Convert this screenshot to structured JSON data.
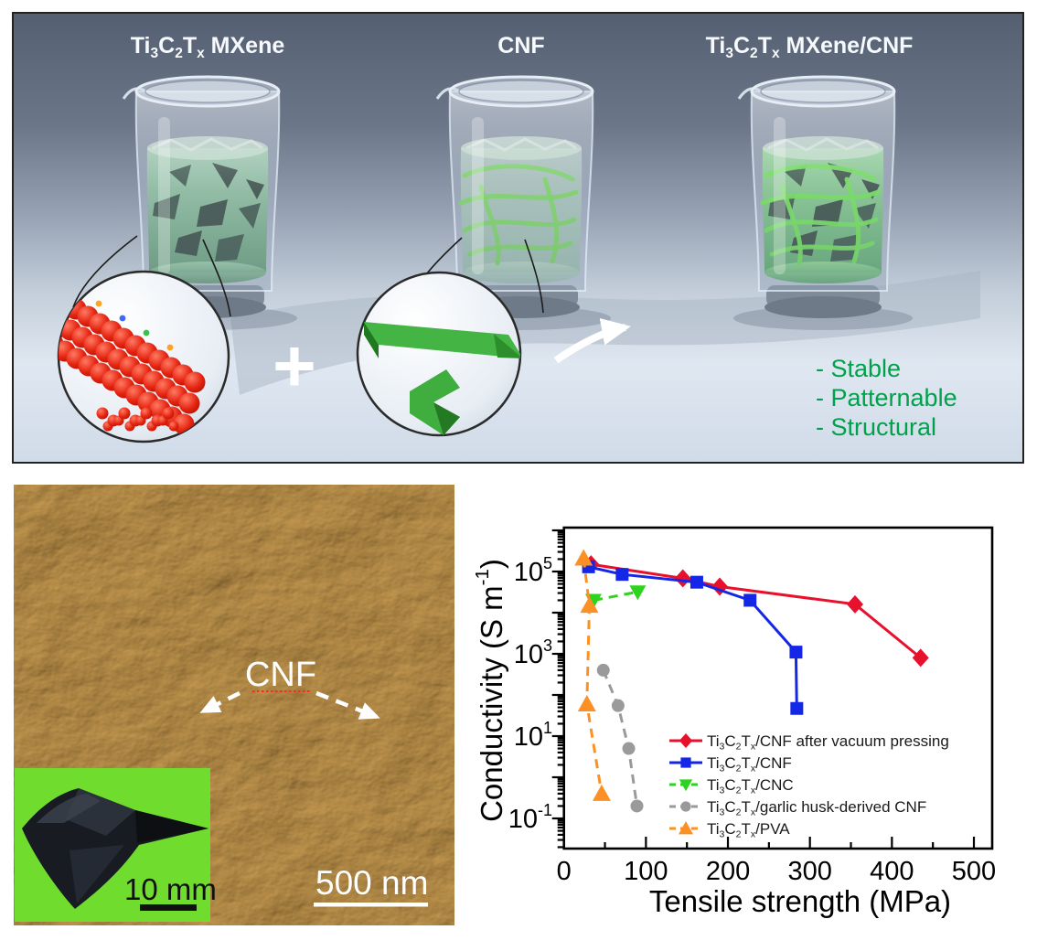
{
  "figure": {
    "background": "#ffffff"
  },
  "schematic": {
    "beaker_labels": [
      "Ti~3~C~2~T~x~ MXene",
      "CNF",
      "Ti~3~C~2~T~x~ MXene/CNF"
    ],
    "plus_sign": "+",
    "features": [
      "- Stable",
      "- Patternable",
      "- Structural"
    ],
    "features_color": "#00a14b",
    "label_color": "#f7fafd"
  },
  "afm": {
    "annotation_label": "CNF",
    "scale_bar_text": "500 nm",
    "inset_scale_bar_text": "10 mm",
    "inset_background_color": "#70dd2e"
  },
  "chart_data": {
    "type": "line",
    "title": "",
    "xlabel": "Tensile strength (MPa)",
    "ylabel": "Conductivity (S m^-1^)",
    "x_ticks": [
      0,
      100,
      200,
      300,
      400,
      500
    ],
    "x_minor_step": 50,
    "xlim": [
      0,
      522
    ],
    "y_scale": "log",
    "ylim_log10": [
      -1.73,
      6.07
    ],
    "y_tick_exponents_labeled": [
      5,
      3,
      1,
      -1
    ],
    "grid": false,
    "legend_position": "inside-bottom-right",
    "series": [
      {
        "name": "Ti~3~C~2~T~x~/CNF after vacuum pressing",
        "color": "#e8112d",
        "marker": "diamond",
        "linestyle": "solid",
        "points": [
          [
            33,
            150000
          ],
          [
            145,
            68000
          ],
          [
            190,
            43000
          ],
          [
            355,
            16000
          ],
          [
            435,
            800
          ]
        ]
      },
      {
        "name": "Ti~3~C~2~T~x~/CNF",
        "color": "#1527e6",
        "marker": "square",
        "linestyle": "solid",
        "points": [
          [
            30,
            130000
          ],
          [
            71,
            85000
          ],
          [
            162,
            55000
          ],
          [
            227,
            20000
          ],
          [
            283,
            1100
          ],
          [
            284,
            47
          ]
        ]
      },
      {
        "name": "Ti~3~C~2~T~x~/CNC",
        "color": "#2ed31d",
        "marker": "triangle-down",
        "linestyle": "dashed",
        "points": [
          [
            36,
            20000
          ],
          [
            90,
            32000
          ]
        ]
      },
      {
        "name": "Ti~3~C~2~T~x~/garlic husk-derived CNF",
        "color": "#9a9a9a",
        "marker": "circle",
        "linestyle": "dashed",
        "points": [
          [
            48,
            400
          ],
          [
            66,
            55
          ],
          [
            79,
            5
          ],
          [
            89,
            0.2
          ]
        ]
      },
      {
        "name": "Ti~3~C~2~T~x~/PVA",
        "color": "#fb9124",
        "marker": "triangle-up",
        "linestyle": "dashed",
        "points": [
          [
            24,
            210000
          ],
          [
            31,
            15000
          ],
          [
            28,
            60
          ],
          [
            46,
            0.4
          ]
        ]
      }
    ]
  }
}
